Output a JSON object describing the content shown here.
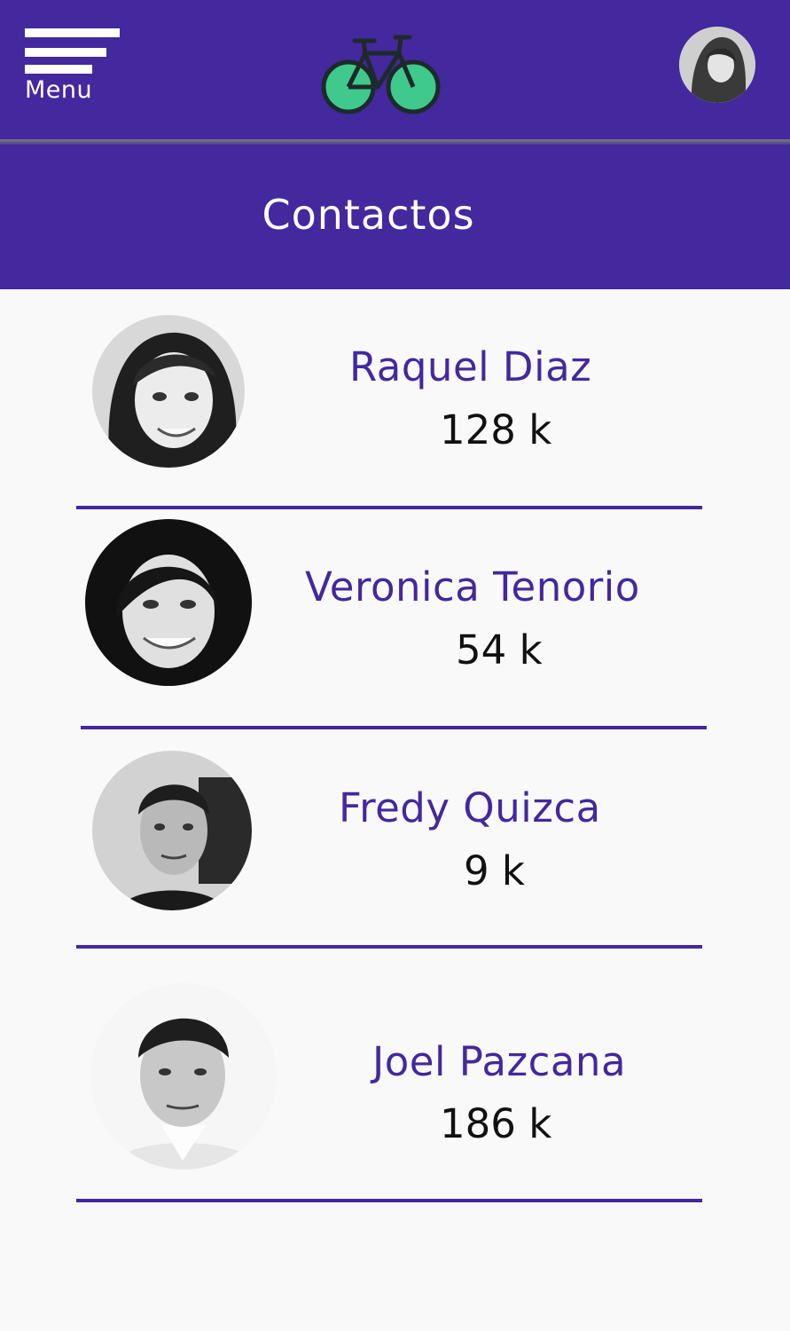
{
  "header": {
    "menu_label": "Menu",
    "logo_icon": "bicycle-icon",
    "accent_color": "#43289e",
    "logo_wheel_color": "#3fc98d"
  },
  "section": {
    "title": "Contactos"
  },
  "contacts": [
    {
      "name": "Raquel Diaz",
      "count": "128 k"
    },
    {
      "name": "Veronica Tenorio",
      "count": "54 k"
    },
    {
      "name": "Fredy Quizca",
      "count": "9 k"
    },
    {
      "name": "Joel Pazcana",
      "count": "186 k"
    }
  ]
}
